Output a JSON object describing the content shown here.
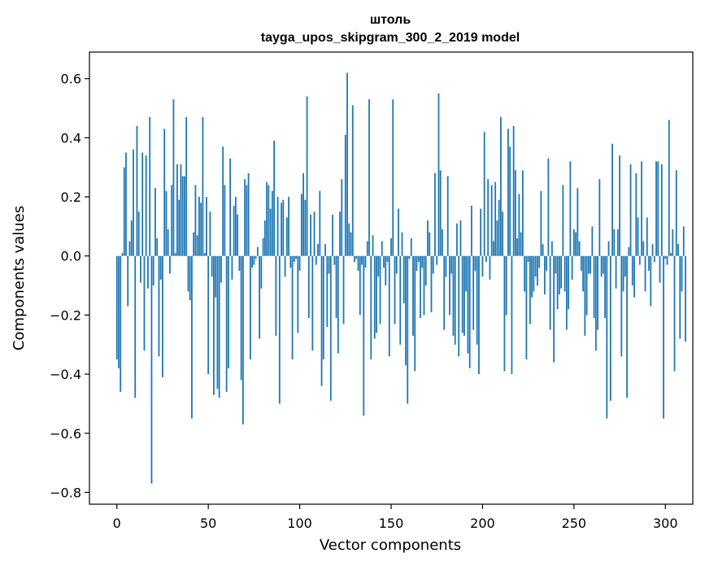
{
  "chart_data": {
    "type": "bar",
    "title": "штоль",
    "subtitle": "tayga_upos_skipgram_300_2_2019 model",
    "xlabel": "Vector components",
    "ylabel": "Components values",
    "xlim": [
      -15,
      315
    ],
    "ylim": [
      -0.84,
      0.69
    ],
    "xticks": [
      0,
      50,
      100,
      150,
      200,
      250,
      300
    ],
    "xtick_labels": [
      "0",
      "50",
      "100",
      "150",
      "200",
      "250",
      "300"
    ],
    "yticks": [
      -0.8,
      -0.6,
      -0.4,
      -0.2,
      0.0,
      0.2,
      0.4,
      0.6
    ],
    "ytick_labels": [
      "−0.8",
      "−0.6",
      "−0.4",
      "−0.2",
      "0.0",
      "0.2",
      "0.4",
      "0.6"
    ],
    "bar_color": "#1f77b4",
    "grid": false,
    "values": [
      -0.35,
      -0.38,
      -0.46,
      0.01,
      0.3,
      0.35,
      -0.17,
      0.05,
      0.12,
      0.36,
      -0.48,
      0.44,
      0.15,
      -0.09,
      0.35,
      -0.32,
      0.34,
      -0.11,
      0.47,
      -0.77,
      -0.1,
      0.23,
      0.06,
      -0.34,
      -0.08,
      -0.41,
      0.43,
      0.22,
      0.09,
      -0.06,
      0.24,
      0.53,
      0.01,
      0.31,
      0.19,
      0.31,
      0.27,
      0.27,
      0.47,
      -0.12,
      -0.15,
      -0.55,
      0.08,
      0.24,
      0.07,
      0.2,
      0.18,
      0.47,
      0.01,
      0.2,
      -0.4,
      0.15,
      -0.07,
      -0.47,
      -0.14,
      -0.45,
      -0.48,
      -0.09,
      0.37,
      0.24,
      -0.46,
      -0.38,
      0.33,
      -0.08,
      0.17,
      0.2,
      0.14,
      -0.05,
      -0.42,
      -0.57,
      0.26,
      0.24,
      0.28,
      -0.35,
      -0.04,
      -0.03,
      -0.01,
      0.03,
      -0.28,
      -0.11,
      0.06,
      0.12,
      0.25,
      0.24,
      0.16,
      0.22,
      0.39,
      -0.27,
      0.2,
      -0.5,
      0.18,
      0.19,
      -0.07,
      0.13,
      0.2,
      -0.04,
      -0.35,
      -0.02,
      -0.01,
      -0.26,
      -0.05,
      0.21,
      0.28,
      0.19,
      0.54,
      -0.21,
      0.14,
      -0.32,
      0.15,
      -0.03,
      0.04,
      0.22,
      -0.44,
      -0.35,
      0.04,
      -0.24,
      -0.06,
      -0.49,
      0.14,
      -0.03,
      -0.21,
      -0.33,
      0.15,
      0.26,
      -0.23,
      0.41,
      0.62,
      0.11,
      0.08,
      0.51,
      -0.02,
      -0.01,
      -0.05,
      -0.2,
      -0.03,
      -0.54,
      -0.04,
      0.05,
      0.53,
      -0.35,
      0.07,
      -0.28,
      -0.26,
      -0.07,
      -0.23,
      0.05,
      -0.04,
      -0.1,
      -0.02,
      -0.34,
      0.06,
      0.53,
      -0.23,
      -0.06,
      0.16,
      -0.3,
      0.08,
      -0.16,
      -0.37,
      -0.5,
      -0.01,
      0.06,
      -0.27,
      -0.39,
      -0.05,
      -0.02,
      -0.21,
      -0.04,
      -0.2,
      -0.1,
      0.12,
      0.08,
      -0.19,
      -0.06,
      0.28,
      -0.03,
      0.55,
      0.29,
      0.09,
      -0.25,
      -0.07,
      0.27,
      -0.2,
      -0.06,
      -0.27,
      -0.3,
      0.11,
      -0.34,
      0.12,
      -0.26,
      -0.27,
      -0.12,
      -0.33,
      -0.38,
      0.17,
      -0.25,
      -0.05,
      -0.3,
      -0.4,
      0.16,
      -0.07,
      0.42,
      -0.02,
      0.26,
      -0.08,
      0.24,
      0.05,
      0.25,
      0.12,
      0.19,
      0.47,
      0.15,
      -0.39,
      -0.2,
      0.43,
      0.37,
      -0.4,
      0.44,
      0.29,
      0.06,
      0.21,
      0.08,
      0.29,
      -0.12,
      -0.35,
      -0.02,
      -0.23,
      -0.14,
      -0.12,
      -0.07,
      -0.1,
      -0.04,
      0.22,
      0.04,
      -0.13,
      -0.05,
      0.33,
      -0.25,
      0.05,
      -0.36,
      -0.06,
      -0.18,
      -0.13,
      -0.11,
      0.24,
      -0.12,
      -0.25,
      -0.18,
      0.32,
      -0.08,
      0.09,
      0.08,
      0.23,
      0.05,
      -0.05,
      -0.12,
      -0.27,
      -0.2,
      -0.06,
      -0.06,
      0.1,
      -0.21,
      -0.32,
      -0.25,
      0.26,
      -0.07,
      -0.06,
      -0.21,
      -0.55,
      0.05,
      -0.49,
      0.38,
      0.09,
      -0.11,
      0.09,
      0.34,
      -0.34,
      -0.12,
      -0.07,
      -0.48,
      0.03,
      0.31,
      -0.1,
      -0.14,
      0.28,
      0.13,
      -0.03,
      0.32,
      0.05,
      -0.12,
      0.13,
      -0.05,
      -0.17,
      0.04,
      -0.02,
      0.32,
      0.32,
      -0.09,
      0.31,
      -0.55,
      -0.01,
      -0.03,
      0.46,
      0.01,
      0.09,
      -0.39,
      0.29,
      0.04,
      -0.28,
      -0.12,
      0.1,
      -0.29
    ]
  }
}
